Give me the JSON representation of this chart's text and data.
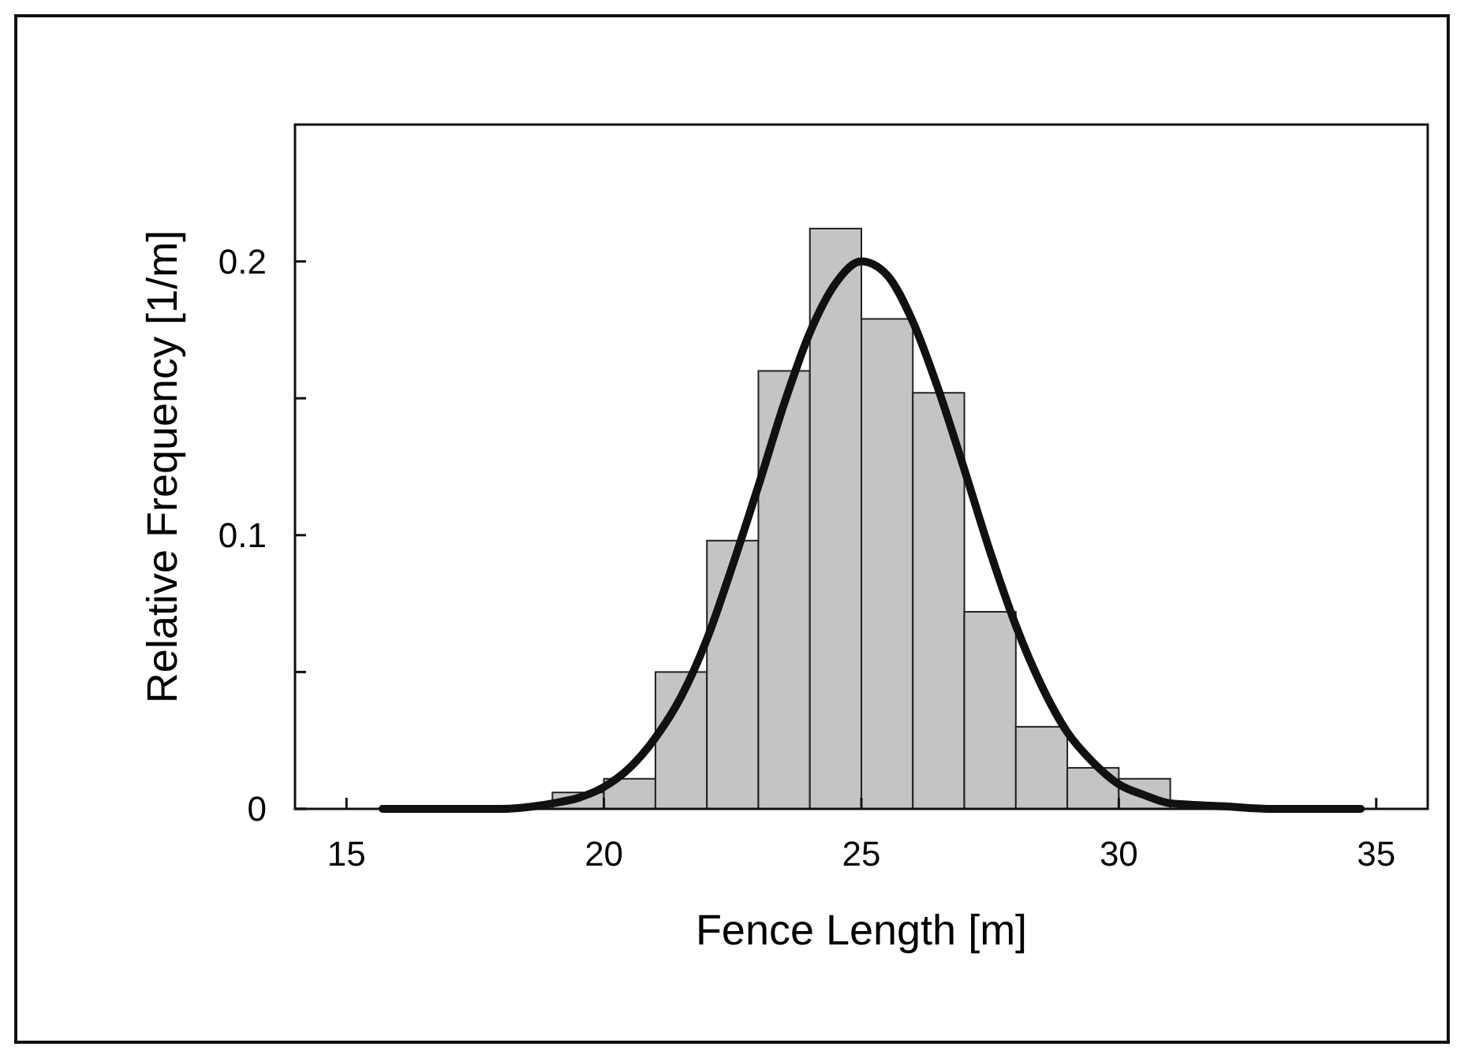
{
  "chart_data": {
    "type": "histogram",
    "xlabel": "Fence Length [m]",
    "ylabel": "Relative Frequency [1/m]",
    "xlim": [
      14,
      36
    ],
    "xticks": [
      15,
      20,
      25,
      30,
      35
    ],
    "ylim": [
      0,
      0.25
    ],
    "yticks": [
      0,
      {
        "value": 0.05,
        "label": null
      },
      0.1,
      {
        "value": 0.15,
        "label": null
      },
      0.2
    ],
    "series": [
      {
        "color": "#c4c4c4",
        "bins": [
          19,
          20,
          21,
          22,
          23,
          24,
          25,
          26,
          27,
          28,
          29,
          30,
          31
        ],
        "values": [
          0.006,
          0.011,
          0.05,
          0.098,
          0.16,
          0.212,
          0.179,
          0.152,
          0.072,
          0.03,
          0.015,
          0.011
        ]
      },
      {
        "type": "line",
        "color": "#111111",
        "x": [
          15.7,
          17,
          18,
          19,
          19.5,
          20,
          20.5,
          21,
          21.5,
          22,
          22.5,
          23,
          23.5,
          24,
          24.5,
          25,
          25.5,
          26,
          26.5,
          27,
          27.5,
          28,
          28.5,
          29,
          29.5,
          30,
          30.5,
          31,
          32,
          33,
          34.7
        ],
        "values": [
          0,
          0,
          0,
          0.002,
          0.004,
          0.008,
          0.015,
          0.026,
          0.041,
          0.062,
          0.089,
          0.118,
          0.148,
          0.174,
          0.192,
          0.2,
          0.195,
          0.178,
          0.153,
          0.124,
          0.094,
          0.067,
          0.045,
          0.028,
          0.017,
          0.009,
          0.005,
          0.002,
          0.001,
          0,
          0
        ]
      }
    ]
  }
}
